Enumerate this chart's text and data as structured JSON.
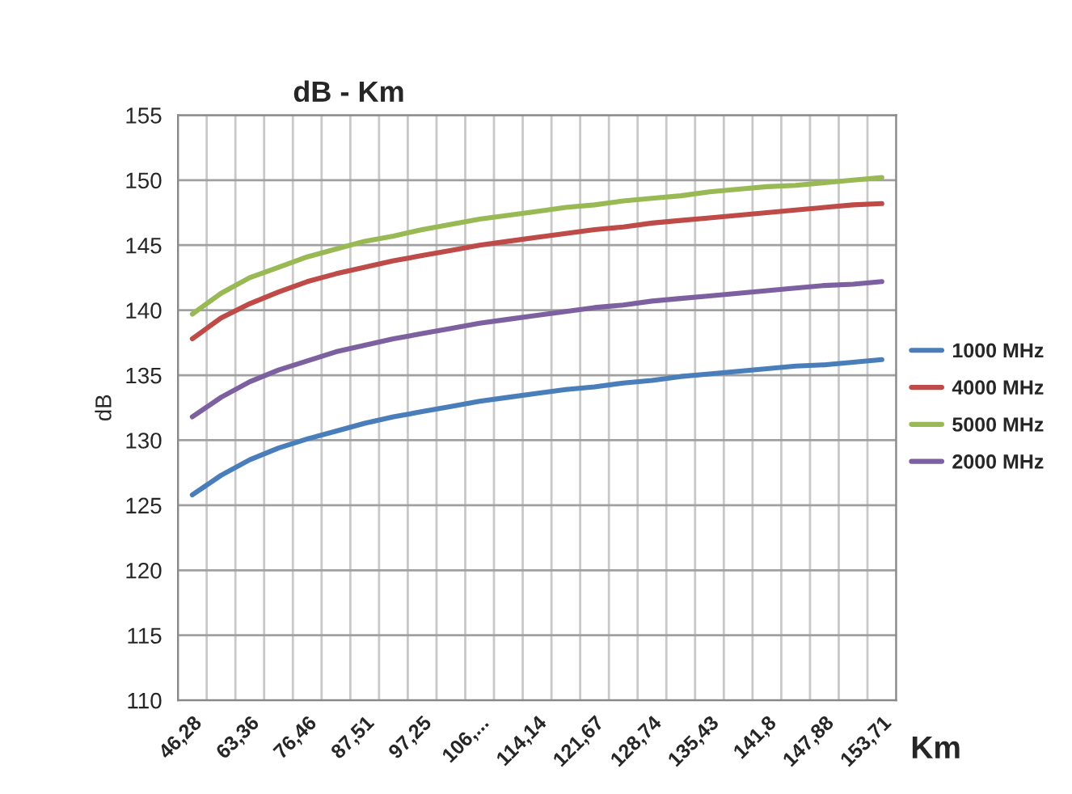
{
  "chart_data": {
    "type": "line",
    "title": "dB - Km",
    "xlabel": "Km",
    "ylabel": "dB",
    "categories": [
      "46,28",
      null,
      "63,36",
      null,
      "76,46",
      null,
      "87,51",
      null,
      "97,25",
      null,
      "106,...",
      null,
      "114,14",
      null,
      "121,67",
      null,
      "128,74",
      null,
      "135,43",
      null,
      "141,8",
      null,
      "147,88",
      null,
      "153,71"
    ],
    "series": [
      {
        "name": "1000 MHz",
        "color": "#4a7ebb",
        "values": [
          125.8,
          127.3,
          128.5,
          129.4,
          130.1,
          130.7,
          131.3,
          131.8,
          132.2,
          132.6,
          133.0,
          133.3,
          133.6,
          133.9,
          134.1,
          134.4,
          134.6,
          134.9,
          135.1,
          135.3,
          135.5,
          135.7,
          135.8,
          136.0,
          136.2
        ]
      },
      {
        "name": "4000 MHz",
        "color": "#be4b48",
        "values": [
          137.8,
          139.4,
          140.5,
          141.4,
          142.2,
          142.8,
          143.3,
          143.8,
          144.2,
          144.6,
          145.0,
          145.3,
          145.6,
          145.9,
          146.2,
          146.4,
          146.7,
          146.9,
          147.1,
          147.3,
          147.5,
          147.7,
          147.9,
          148.1,
          148.2
        ]
      },
      {
        "name": "5000 MHz",
        "color": "#98b954",
        "values": [
          139.7,
          141.3,
          142.5,
          143.3,
          144.1,
          144.7,
          145.3,
          145.7,
          146.2,
          146.6,
          147.0,
          147.3,
          147.6,
          147.9,
          148.1,
          148.4,
          148.6,
          148.8,
          149.1,
          149.3,
          149.5,
          149.6,
          149.8,
          150.0,
          150.2
        ]
      },
      {
        "name": "2000 MHz",
        "color": "#7d60a0",
        "values": [
          131.8,
          133.3,
          134.5,
          135.4,
          136.1,
          136.8,
          137.3,
          137.8,
          138.2,
          138.6,
          139.0,
          139.3,
          139.6,
          139.9,
          140.2,
          140.4,
          140.7,
          140.9,
          141.1,
          141.3,
          141.5,
          141.7,
          141.9,
          142.0,
          142.2
        ]
      }
    ],
    "ylim": [
      110,
      155
    ],
    "yticks": [
      110,
      115,
      120,
      125,
      130,
      135,
      140,
      145,
      150,
      155
    ],
    "grid": true,
    "legend": "right",
    "marker": "none",
    "line_style": "solid"
  }
}
